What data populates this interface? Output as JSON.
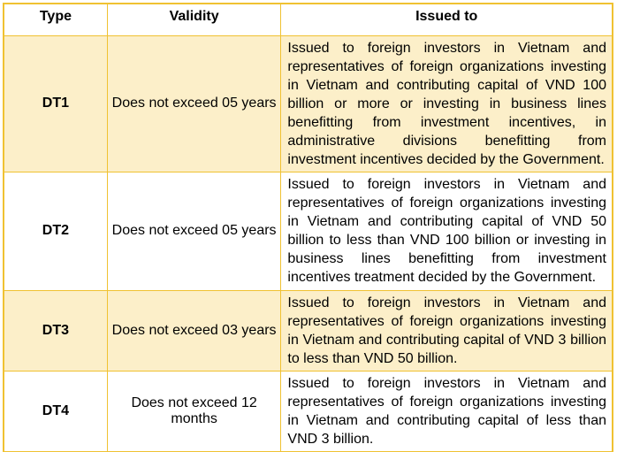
{
  "colors": {
    "border_gold": "#F0C232",
    "row_shaded_bg": "#FCEFC9",
    "row_plain_bg": "#FFFFFF",
    "header_bg": "#FFFFFF",
    "text": "#000000"
  },
  "table": {
    "headers": {
      "type": "Type",
      "validity": "Validity",
      "issued_to": "Issued to"
    },
    "rows": [
      {
        "type": "DT1",
        "validity": "Does not exceed 05 years",
        "issued_to": "Issued to foreign investors in Vietnam and representatives of foreign organizations investing in Vietnam and contributing capital of VND 100 billion or more or investing in business lines benefitting from investment incentives, in administrative divisions benefitting from investment incentives decided by the Government."
      },
      {
        "type": "DT2",
        "validity": "Does not exceed 05 years",
        "issued_to": "Issued to foreign investors in Vietnam and representatives of foreign organizations investing in Vietnam and contributing capital of VND 50 billion to less than VND 100 billion or investing in business lines benefitting from investment incentives treatment decided by the Government."
      },
      {
        "type": "DT3",
        "validity": "Does not exceed 03 years",
        "issued_to": "Issued to foreign investors in Vietnam and representatives of foreign organizations investing in Vietnam and contributing capital of VND 3 billion to less than VND 50 billion."
      },
      {
        "type": "DT4",
        "validity": "Does not exceed 12 months",
        "issued_to": "Issued to foreign investors in Vietnam and representatives of foreign organizations investing in Vietnam and contributing capital of less than VND 3 billion."
      }
    ]
  }
}
